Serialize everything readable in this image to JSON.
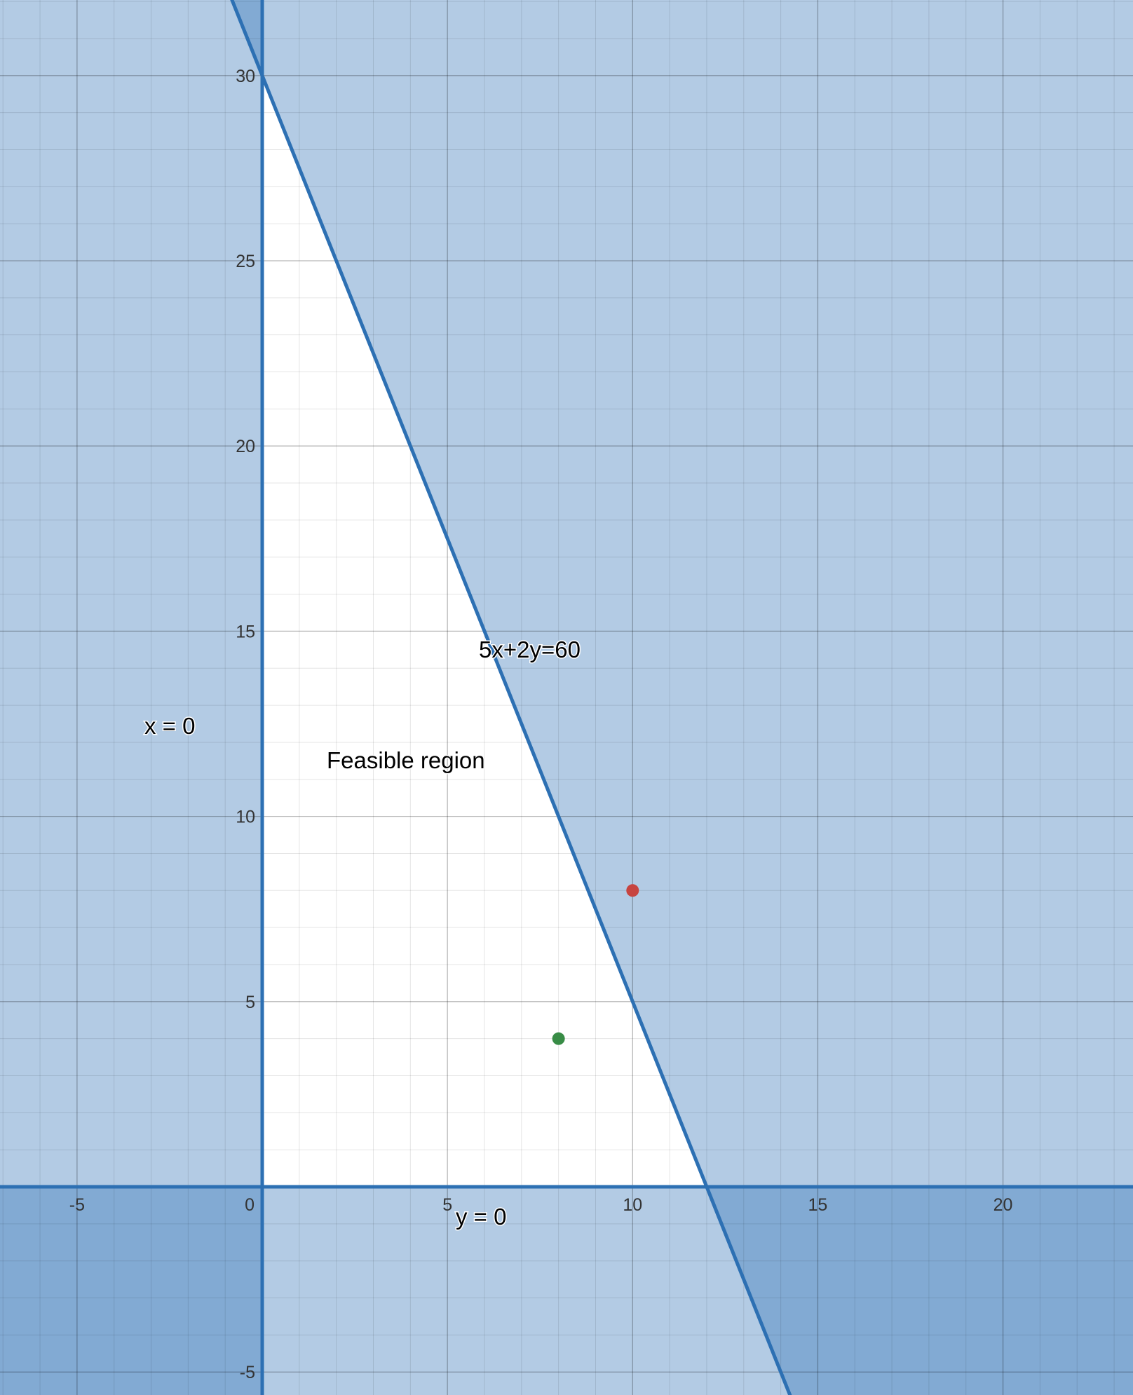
{
  "chart_data": {
    "type": "scatter",
    "title": "",
    "xlabel": "",
    "ylabel": "",
    "xlim": [
      -7.08,
      23.51
    ],
    "ylim": [
      -5.62,
      32.04
    ],
    "grid": true,
    "x_ticks": [
      "-5",
      "0",
      "5",
      "10",
      "15",
      "20"
    ],
    "y_ticks": [
      "-5",
      "5",
      "10",
      "15",
      "20",
      "25",
      "30"
    ],
    "constraints": [
      {
        "equation": "5x+2y=60",
        "a": 5,
        "b": 2,
        "c": 60,
        "feasible_side": "<="
      },
      {
        "equation": "x = 0",
        "axis": "x",
        "value": 0,
        "feasible_side": ">="
      },
      {
        "equation": "y = 0",
        "axis": "y",
        "value": 0,
        "feasible_side": ">="
      }
    ],
    "feasible_region": {
      "label": "Feasible region",
      "vertices": [
        [
          0,
          0
        ],
        [
          12,
          0
        ],
        [
          0,
          30
        ]
      ]
    },
    "points": [
      {
        "x": 10,
        "y": 8,
        "color": "#c74440"
      },
      {
        "x": 8,
        "y": 4,
        "color": "#388c46"
      }
    ],
    "colors": {
      "line": "#2d70b3",
      "shade": "#2d70b3",
      "background": "#ffffff"
    }
  },
  "annotations": {
    "line_label": "5x+2y=60",
    "x_axis_line_label": "x = 0",
    "y_axis_line_label": "y = 0",
    "region_label": "Feasible region"
  }
}
